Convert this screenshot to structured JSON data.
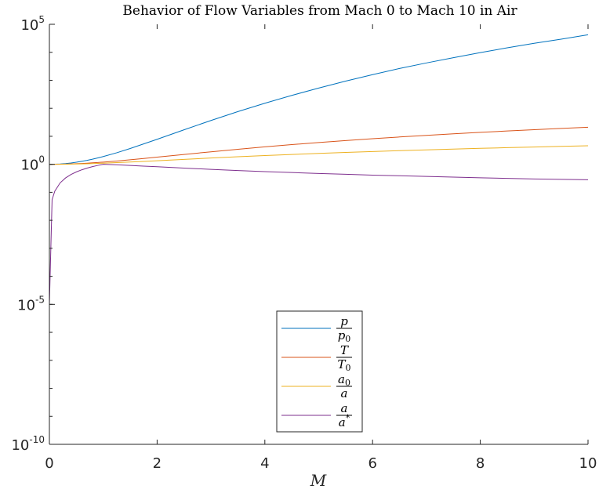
{
  "chart_data": {
    "type": "line",
    "title": "Behavior of Flow Variables from Mach 0 to Mach 10 in Air",
    "xlabel": "M",
    "ylabel": "",
    "xlim": [
      0,
      10
    ],
    "ylim_log10": [
      -10,
      5
    ],
    "yscale": "log",
    "grid": false,
    "legend_position": "bottom-center",
    "x_ticks": [
      "0",
      "2",
      "4",
      "6",
      "8",
      "10"
    ],
    "y_ticks": [
      {
        "base": "10",
        "exp": "-10"
      },
      {
        "base": "10",
        "exp": "-5"
      },
      {
        "base": "10",
        "exp": "0"
      },
      {
        "base": "10",
        "exp": "5"
      }
    ],
    "x": [
      0,
      0.05,
      0.1,
      0.2,
      0.3,
      0.4,
      0.5,
      0.6,
      0.7,
      0.8,
      0.9,
      1,
      1.25,
      1.5,
      1.75,
      2,
      2.5,
      3,
      3.5,
      4,
      4.5,
      5,
      5.5,
      6,
      6.5,
      7,
      7.5,
      8,
      8.5,
      9,
      9.5,
      10
    ],
    "series": [
      {
        "legend_num": "p",
        "legend_num_sub": "",
        "legend_num_sup": "",
        "legend_den": "p",
        "legend_den_sub": "0",
        "legend_den_sup": "",
        "color": "#0072BD",
        "values": [
          1,
          1.002,
          1.007,
          1.028,
          1.064,
          1.117,
          1.186,
          1.276,
          1.387,
          1.524,
          1.691,
          1.893,
          2.582,
          3.671,
          5.369,
          7.824,
          17.09,
          36.73,
          76.27,
          151.8,
          288.9,
          529.1,
          937.5,
          1595,
          2645,
          4170,
          6415,
          9763,
          14440,
          20890,
          29400,
          42390
        ]
      },
      {
        "legend_num": "T",
        "legend_num_sub": "",
        "legend_num_sup": "",
        "legend_den": "T",
        "legend_den_sub": "0",
        "legend_den_sup": "",
        "color": "#D95319",
        "values": [
          1,
          1.0005,
          1.002,
          1.008,
          1.018,
          1.032,
          1.05,
          1.072,
          1.098,
          1.128,
          1.162,
          1.2,
          1.3125,
          1.45,
          1.6125,
          1.8,
          2.25,
          2.8,
          3.45,
          4.2,
          5.05,
          6,
          7.05,
          8.2,
          9.45,
          10.8,
          12.25,
          13.8,
          15.45,
          17.2,
          19.05,
          21
        ]
      },
      {
        "legend_num": "a",
        "legend_num_sub": "0",
        "legend_num_sup": "",
        "legend_den": "a",
        "legend_den_sub": "",
        "legend_den_sup": "",
        "color": "#EDB120",
        "values": [
          1,
          1.0002,
          1.001,
          1.004,
          1.009,
          1.016,
          1.025,
          1.035,
          1.048,
          1.062,
          1.078,
          1.095,
          1.146,
          1.204,
          1.27,
          1.342,
          1.5,
          1.673,
          1.857,
          2.049,
          2.247,
          2.449,
          2.655,
          2.864,
          3.074,
          3.286,
          3.5,
          3.715,
          3.931,
          4.147,
          4.365,
          4.583
        ]
      },
      {
        "legend_num": "a",
        "legend_num_sub": "",
        "legend_num_sup": "",
        "legend_den": "a",
        "legend_den_sub": "",
        "legend_den_sup": "*",
        "color": "#7E2F8E",
        "values": [
          1e-05,
          0.0548,
          0.1094,
          0.2182,
          0.3257,
          0.4313,
          0.5345,
          0.6348,
          0.7318,
          0.8251,
          0.9142,
          1,
          0.965,
          0.91,
          0.86,
          0.82,
          0.73,
          0.66,
          0.6,
          0.55,
          0.51,
          0.47,
          0.44,
          0.41,
          0.39,
          0.37,
          0.35,
          0.33,
          0.315,
          0.3,
          0.29,
          0.28
        ]
      }
    ]
  }
}
